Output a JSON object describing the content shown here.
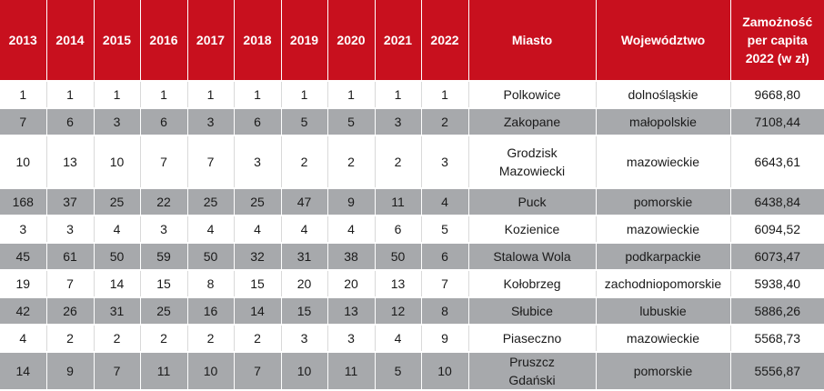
{
  "headers": [
    "2013",
    "2014",
    "2015",
    "2016",
    "2017",
    "2018",
    "2019",
    "2020",
    "2021",
    "2022",
    "Miasto",
    "Województwo",
    "Zamożność per capita 2022 (w zł)"
  ],
  "rows": [
    [
      "1",
      "1",
      "1",
      "1",
      "1",
      "1",
      "1",
      "1",
      "1",
      "1",
      "Polkowice",
      "dolnośląskie",
      "9668,80"
    ],
    [
      "7",
      "6",
      "3",
      "6",
      "3",
      "6",
      "5",
      "5",
      "3",
      "2",
      "Zakopane",
      "małopolskie",
      "7108,44"
    ],
    [
      "10",
      "13",
      "10",
      "7",
      "7",
      "3",
      "2",
      "2",
      "2",
      "3",
      "Grodzisk Mazowiecki",
      "mazowieckie",
      "6643,61"
    ],
    [
      "168",
      "37",
      "25",
      "22",
      "25",
      "25",
      "47",
      "9",
      "11",
      "4",
      "Puck",
      "pomorskie",
      "6438,84"
    ],
    [
      "3",
      "3",
      "4",
      "3",
      "4",
      "4",
      "4",
      "4",
      "6",
      "5",
      "Kozienice",
      "mazowieckie",
      "6094,52"
    ],
    [
      "45",
      "61",
      "50",
      "59",
      "50",
      "32",
      "31",
      "38",
      "50",
      "6",
      "Stalowa Wola",
      "podkarpackie",
      "6073,47"
    ],
    [
      "19",
      "7",
      "14",
      "15",
      "8",
      "15",
      "20",
      "20",
      "13",
      "7",
      "Kołobrzeg",
      "zachodniopomorskie",
      "5938,40"
    ],
    [
      "42",
      "26",
      "31",
      "25",
      "16",
      "14",
      "15",
      "13",
      "12",
      "8",
      "Słubice",
      "lubuskie",
      "5886,26"
    ],
    [
      "4",
      "2",
      "2",
      "2",
      "2",
      "2",
      "3",
      "3",
      "4",
      "9",
      "Piaseczno",
      "mazowieckie",
      "5568,73"
    ],
    [
      "14",
      "9",
      "7",
      "11",
      "10",
      "7",
      "10",
      "11",
      "5",
      "10",
      "Pruszcz Gdański",
      "pomorskie",
      "5556,87"
    ]
  ]
}
